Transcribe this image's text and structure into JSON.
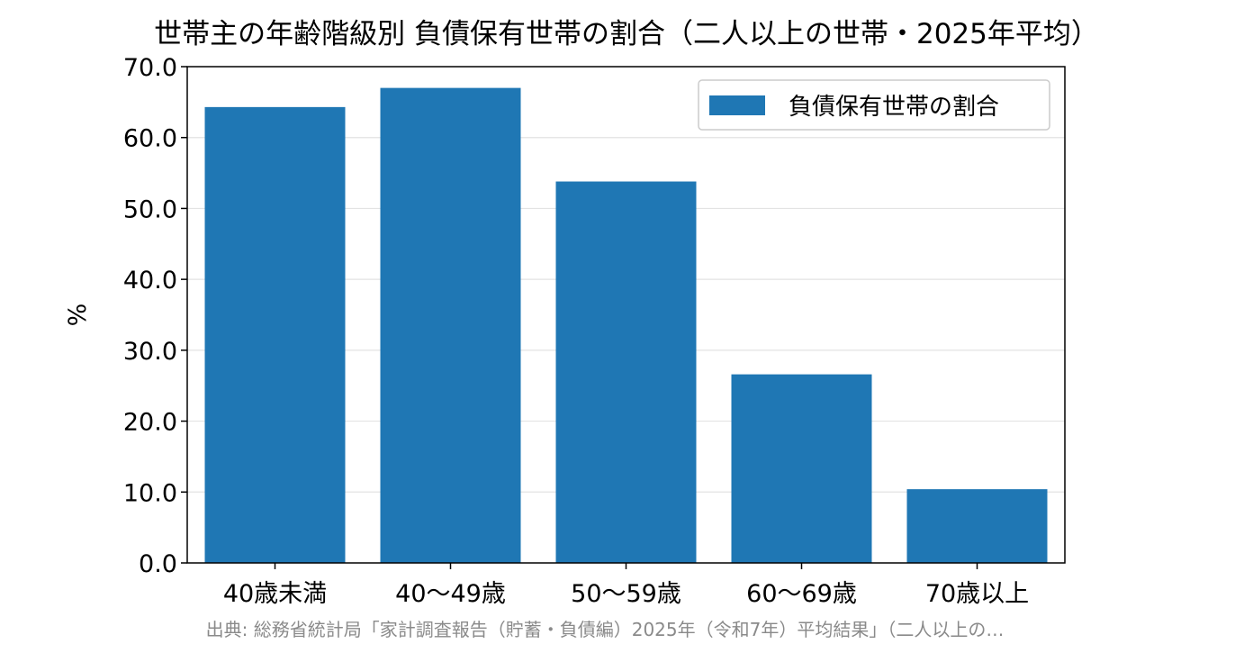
{
  "chart_data": {
    "type": "bar",
    "title": "世帯主の年齢階級別 負債保有世帯の割合（二人以上の世帯・2025年平均）",
    "categories": [
      "40歳未満",
      "40～49歳",
      "50～59歳",
      "60～69歳",
      "70歳以上"
    ],
    "series": [
      {
        "name": "負債保有世帯の割合",
        "values": [
          64.3,
          67.0,
          53.8,
          26.6,
          10.4
        ],
        "color": "#1f77b4"
      }
    ],
    "xlabel": "",
    "ylabel": "%",
    "ylim": [
      0,
      70
    ],
    "yticks": [
      "0.0",
      "10.0",
      "20.0",
      "30.0",
      "40.0",
      "50.0",
      "60.0",
      "70.0"
    ],
    "grid": "horizontal",
    "legend_position": "top-right",
    "source": "出典: 総務省統計局「家計調査報告（貯蓄・負債編）2025年（令和7年）平均結果」（二人以上の…"
  }
}
